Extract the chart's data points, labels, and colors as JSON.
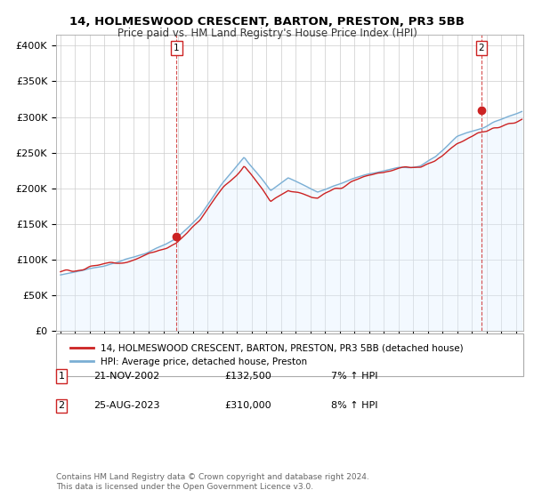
{
  "title": "14, HOLMESWOOD CRESCENT, BARTON, PRESTON, PR3 5BB",
  "subtitle": "Price paid vs. HM Land Registry's House Price Index (HPI)",
  "ylabel_ticks": [
    "£0",
    "£50K",
    "£100K",
    "£150K",
    "£200K",
    "£250K",
    "£300K",
    "£350K",
    "£400K"
  ],
  "ytick_vals": [
    0,
    50000,
    100000,
    150000,
    200000,
    250000,
    300000,
    350000,
    400000
  ],
  "ylim": [
    0,
    415000
  ],
  "xlim_start": 1994.7,
  "xlim_end": 2026.5,
  "sale1_date": 2002.9,
  "sale1_price": 132500,
  "sale1_label": "1",
  "sale2_date": 2023.65,
  "sale2_price": 310000,
  "sale2_label": "2",
  "hpi_color": "#7bafd4",
  "hpi_fill_color": "#ddeeff",
  "price_color": "#cc2222",
  "vline_color": "#cc2222",
  "background_color": "#ffffff",
  "grid_color": "#cccccc",
  "legend_label_price": "14, HOLMESWOOD CRESCENT, BARTON, PRESTON, PR3 5BB (detached house)",
  "legend_label_hpi": "HPI: Average price, detached house, Preston",
  "table_rows": [
    {
      "num": "1",
      "date": "21-NOV-2002",
      "price": "£132,500",
      "hpi": "7% ↑ HPI"
    },
    {
      "num": "2",
      "date": "25-AUG-2023",
      "price": "£310,000",
      "hpi": "8% ↑ HPI"
    }
  ],
  "footnote": "Contains HM Land Registry data © Crown copyright and database right 2024.\nThis data is licensed under the Open Government Licence v3.0."
}
